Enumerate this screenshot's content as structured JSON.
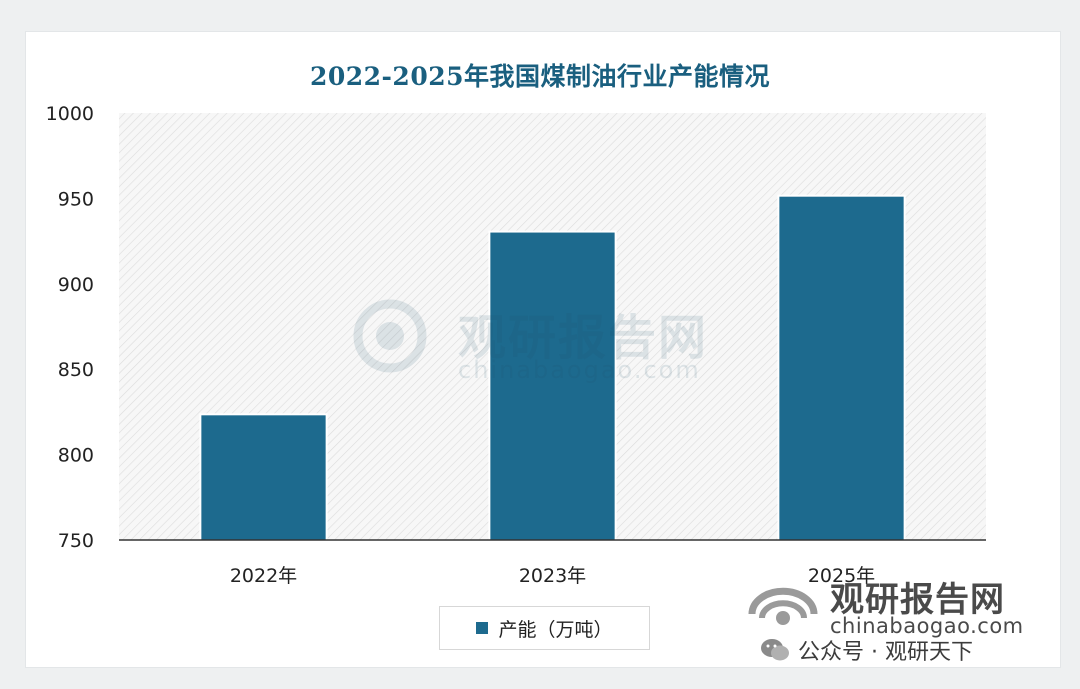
{
  "chart_data": {
    "type": "bar",
    "title": "2022-2025年我国煤制油行业产能情况",
    "categories": [
      "2022年",
      "2023年",
      "2025年"
    ],
    "series": [
      {
        "name": "产能（万吨）",
        "values": [
          823,
          930,
          951
        ]
      }
    ],
    "ylim": [
      750,
      1000
    ],
    "yticks": [
      750,
      800,
      850,
      900,
      950,
      1000
    ],
    "xlabel": "",
    "ylabel": "",
    "legend_position": "bottom",
    "grid": false,
    "background_pattern": "diagonal-hatch",
    "colors": {
      "bar": "#1d6a8e",
      "title": "#1a5f7f"
    }
  },
  "watermark": {
    "center_name": "观研报告网",
    "center_url": "chinabaogao.com",
    "corner_name": "观研报告网",
    "corner_url": "chinabaogao.com",
    "wechat_text": "公众号 · 观研天下",
    "icon": "wechat-icon"
  }
}
